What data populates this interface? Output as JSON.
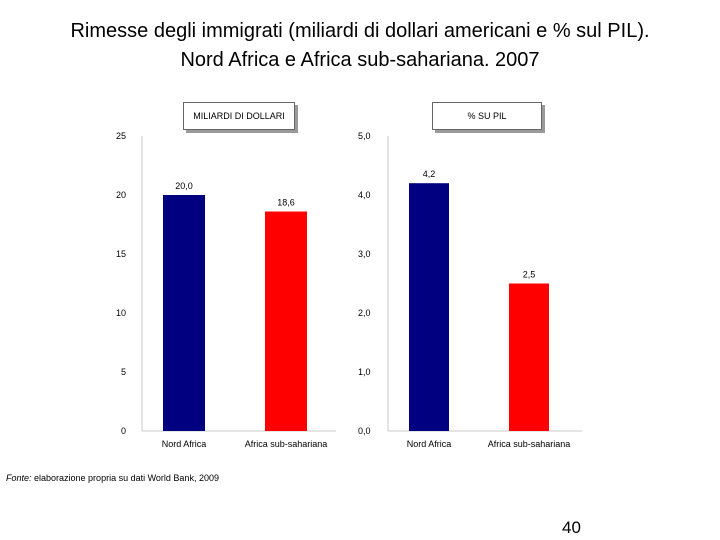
{
  "title": {
    "line1": "Rimesse degli immigrati (miliardi di dollari americani e % sul PIL).",
    "line2": "Nord Africa e Africa sub-sahariana. 2007"
  },
  "chart_data": [
    {
      "type": "bar",
      "title": "MILIARDI DI DOLLARI",
      "categories": [
        "Nord Africa",
        "Africa sub-sahariana"
      ],
      "values": [
        20.0,
        18.6
      ],
      "value_labels": [
        "20,0",
        "18,6"
      ],
      "ylim": [
        0,
        25
      ],
      "yticks": [
        0,
        5,
        10,
        15,
        20,
        25
      ],
      "ytick_labels": [
        "0",
        "5",
        "10",
        "15",
        "20",
        "25"
      ],
      "colors": [
        "#000080",
        "#ff0000"
      ],
      "grid": false
    },
    {
      "type": "bar",
      "title": "% SU PIL",
      "categories": [
        "Nord Africa",
        "Africa sub-sahariana"
      ],
      "values": [
        4.2,
        2.5
      ],
      "value_labels": [
        "4,2",
        "2,5"
      ],
      "ylim": [
        0,
        5
      ],
      "yticks": [
        0,
        1,
        2,
        3,
        4,
        5
      ],
      "ytick_labels": [
        "0,0",
        "1,0",
        "2,0",
        "3,0",
        "4,0",
        "5,0"
      ],
      "colors": [
        "#000080",
        "#ff0000"
      ],
      "grid": false
    }
  ],
  "source": {
    "prefix": "Fonte:",
    "text": " elaborazione propria su dati World Bank, 2009"
  },
  "page_number": "40"
}
